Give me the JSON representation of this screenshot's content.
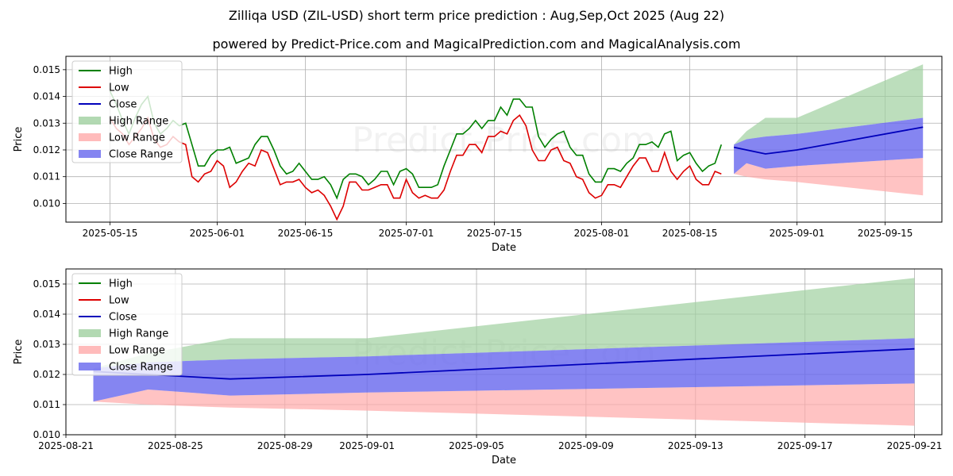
{
  "title": "Zilliqa USD (ZIL-USD) short term price prediction : Aug,Sep,Oct 2025 (Aug 22)",
  "subtitle": "powered by Predict-Price.com and MagicalPrediction.com and MagicalAnalysis.com",
  "watermark": "Predict-Price.com",
  "colors": {
    "high": "#008000",
    "low": "#dd0000",
    "close": "#0000bb",
    "high_range": "#9fd09f",
    "low_range": "#ffaaaa",
    "close_range": "#6666ee"
  },
  "legend": [
    {
      "key": "high",
      "label": "High",
      "kind": "line"
    },
    {
      "key": "low",
      "label": "Low",
      "kind": "line"
    },
    {
      "key": "close",
      "label": "Close",
      "kind": "line"
    },
    {
      "key": "high_range",
      "label": "High Range",
      "kind": "patch"
    },
    {
      "key": "low_range",
      "label": "Low Range",
      "kind": "patch"
    },
    {
      "key": "close_range",
      "label": "Close Range",
      "kind": "patch"
    }
  ],
  "chart_data": [
    {
      "type": "line",
      "xlabel": "Date",
      "ylabel": "Price",
      "xlim": [
        "2025-05-08",
        "2025-09-24"
      ],
      "ylim": [
        0.0093,
        0.0155
      ],
      "x_ticks": [
        "2025-05-15",
        "2025-06-01",
        "2025-06-15",
        "2025-07-01",
        "2025-07-15",
        "2025-08-01",
        "2025-08-15",
        "2025-09-01",
        "2025-09-15"
      ],
      "y_ticks": [
        0.01,
        0.011,
        0.012,
        0.013,
        0.014,
        0.015
      ],
      "y_tick_labels": [
        "0.010",
        "0.011",
        "0.012",
        "0.013",
        "0.014",
        "0.015"
      ],
      "grid": true,
      "legend_position": "upper-left",
      "history": {
        "start": "2025-05-15",
        "high": [
          0.0142,
          0.0137,
          0.0131,
          0.0126,
          0.0132,
          0.0137,
          0.014,
          0.013,
          0.0126,
          0.0128,
          0.0131,
          0.0129,
          0.013,
          0.0122,
          0.0114,
          0.0114,
          0.0118,
          0.012,
          0.012,
          0.0121,
          0.0115,
          0.0116,
          0.0117,
          0.0122,
          0.0125,
          0.0125,
          0.012,
          0.0114,
          0.0111,
          0.0112,
          0.0115,
          0.0112,
          0.0109,
          0.0109,
          0.011,
          0.0107,
          0.0102,
          0.0109,
          0.0111,
          0.0111,
          0.011,
          0.0107,
          0.0109,
          0.0112,
          0.0112,
          0.0107,
          0.0112,
          0.0113,
          0.0111,
          0.0106,
          0.0106,
          0.0106,
          0.0107,
          0.0114,
          0.012,
          0.0126,
          0.0126,
          0.0128,
          0.0131,
          0.0128,
          0.0131,
          0.0131,
          0.0136,
          0.0133,
          0.0139,
          0.0139,
          0.0136,
          0.0136,
          0.0125,
          0.0121,
          0.0124,
          0.0126,
          0.0127,
          0.0121,
          0.0118,
          0.0118,
          0.0111,
          0.0108,
          0.0108,
          0.0113,
          0.0113,
          0.0112,
          0.0115,
          0.0117,
          0.0122,
          0.0122,
          0.0123,
          0.0121,
          0.0126,
          0.0127,
          0.0116,
          0.0118,
          0.0119,
          0.0115,
          0.0112,
          0.0114,
          0.0115,
          0.0122
        ],
        "low": [
          0.0132,
          0.0128,
          0.0126,
          0.0122,
          0.0125,
          0.0128,
          0.0132,
          0.0124,
          0.0121,
          0.0122,
          0.0125,
          0.0123,
          0.0122,
          0.011,
          0.0108,
          0.0111,
          0.0112,
          0.0116,
          0.0114,
          0.0106,
          0.0108,
          0.0112,
          0.0115,
          0.0114,
          0.012,
          0.0119,
          0.0113,
          0.0107,
          0.0108,
          0.0108,
          0.0109,
          0.0106,
          0.0104,
          0.0105,
          0.0103,
          0.0099,
          0.0094,
          0.0099,
          0.0108,
          0.0108,
          0.0105,
          0.0105,
          0.0106,
          0.0107,
          0.0107,
          0.0102,
          0.0102,
          0.0109,
          0.0104,
          0.0102,
          0.0103,
          0.0102,
          0.0102,
          0.0105,
          0.0112,
          0.0118,
          0.0118,
          0.0122,
          0.0122,
          0.0119,
          0.0125,
          0.0125,
          0.0127,
          0.0126,
          0.0131,
          0.0133,
          0.0129,
          0.012,
          0.0116,
          0.0116,
          0.012,
          0.0121,
          0.0116,
          0.0115,
          0.011,
          0.0109,
          0.0104,
          0.0102,
          0.0103,
          0.0107,
          0.0107,
          0.0106,
          0.011,
          0.0114,
          0.0117,
          0.0117,
          0.0112,
          0.0112,
          0.0119,
          0.0112,
          0.0109,
          0.0112,
          0.0114,
          0.0109,
          0.0107,
          0.0107,
          0.0112,
          0.0111
        ]
      },
      "forecast": {
        "x": [
          "2025-08-22",
          "2025-08-24",
          "2025-08-27",
          "2025-09-01",
          "2025-09-21"
        ],
        "close": [
          0.0121,
          0.012,
          0.01185,
          0.012,
          0.01285
        ],
        "close_upper": [
          0.0122,
          0.0124,
          0.0125,
          0.0126,
          0.0132
        ],
        "close_lower": [
          0.0111,
          0.0115,
          0.0113,
          0.0114,
          0.0117
        ],
        "high_upper": [
          0.0122,
          0.0127,
          0.0132,
          0.0132,
          0.0152
        ],
        "low_lower": [
          0.0111,
          0.011,
          0.0109,
          0.0108,
          0.0103
        ]
      }
    },
    {
      "type": "line",
      "xlabel": "Date",
      "ylabel": "Price",
      "xlim": [
        "2025-08-21",
        "2025-09-22"
      ],
      "ylim": [
        0.01,
        0.0155
      ],
      "x_ticks": [
        "2025-08-21",
        "2025-08-25",
        "2025-08-29",
        "2025-09-01",
        "2025-09-05",
        "2025-09-09",
        "2025-09-13",
        "2025-09-17",
        "2025-09-21"
      ],
      "y_ticks": [
        0.01,
        0.011,
        0.012,
        0.013,
        0.014,
        0.015
      ],
      "y_tick_labels": [
        "0.010",
        "0.011",
        "0.012",
        "0.013",
        "0.014",
        "0.015"
      ],
      "grid": true,
      "legend_position": "upper-left",
      "forecast": {
        "x": [
          "2025-08-22",
          "2025-08-24",
          "2025-08-27",
          "2025-09-01",
          "2025-09-21"
        ],
        "close": [
          0.0121,
          0.012,
          0.01185,
          0.012,
          0.01285
        ],
        "close_upper": [
          0.0122,
          0.0124,
          0.0125,
          0.0126,
          0.0132
        ],
        "close_lower": [
          0.0111,
          0.0115,
          0.0113,
          0.0114,
          0.0117
        ],
        "high_upper": [
          0.0122,
          0.0127,
          0.0132,
          0.0132,
          0.0152
        ],
        "low_lower": [
          0.0111,
          0.011,
          0.0109,
          0.0108,
          0.0103
        ]
      }
    }
  ]
}
